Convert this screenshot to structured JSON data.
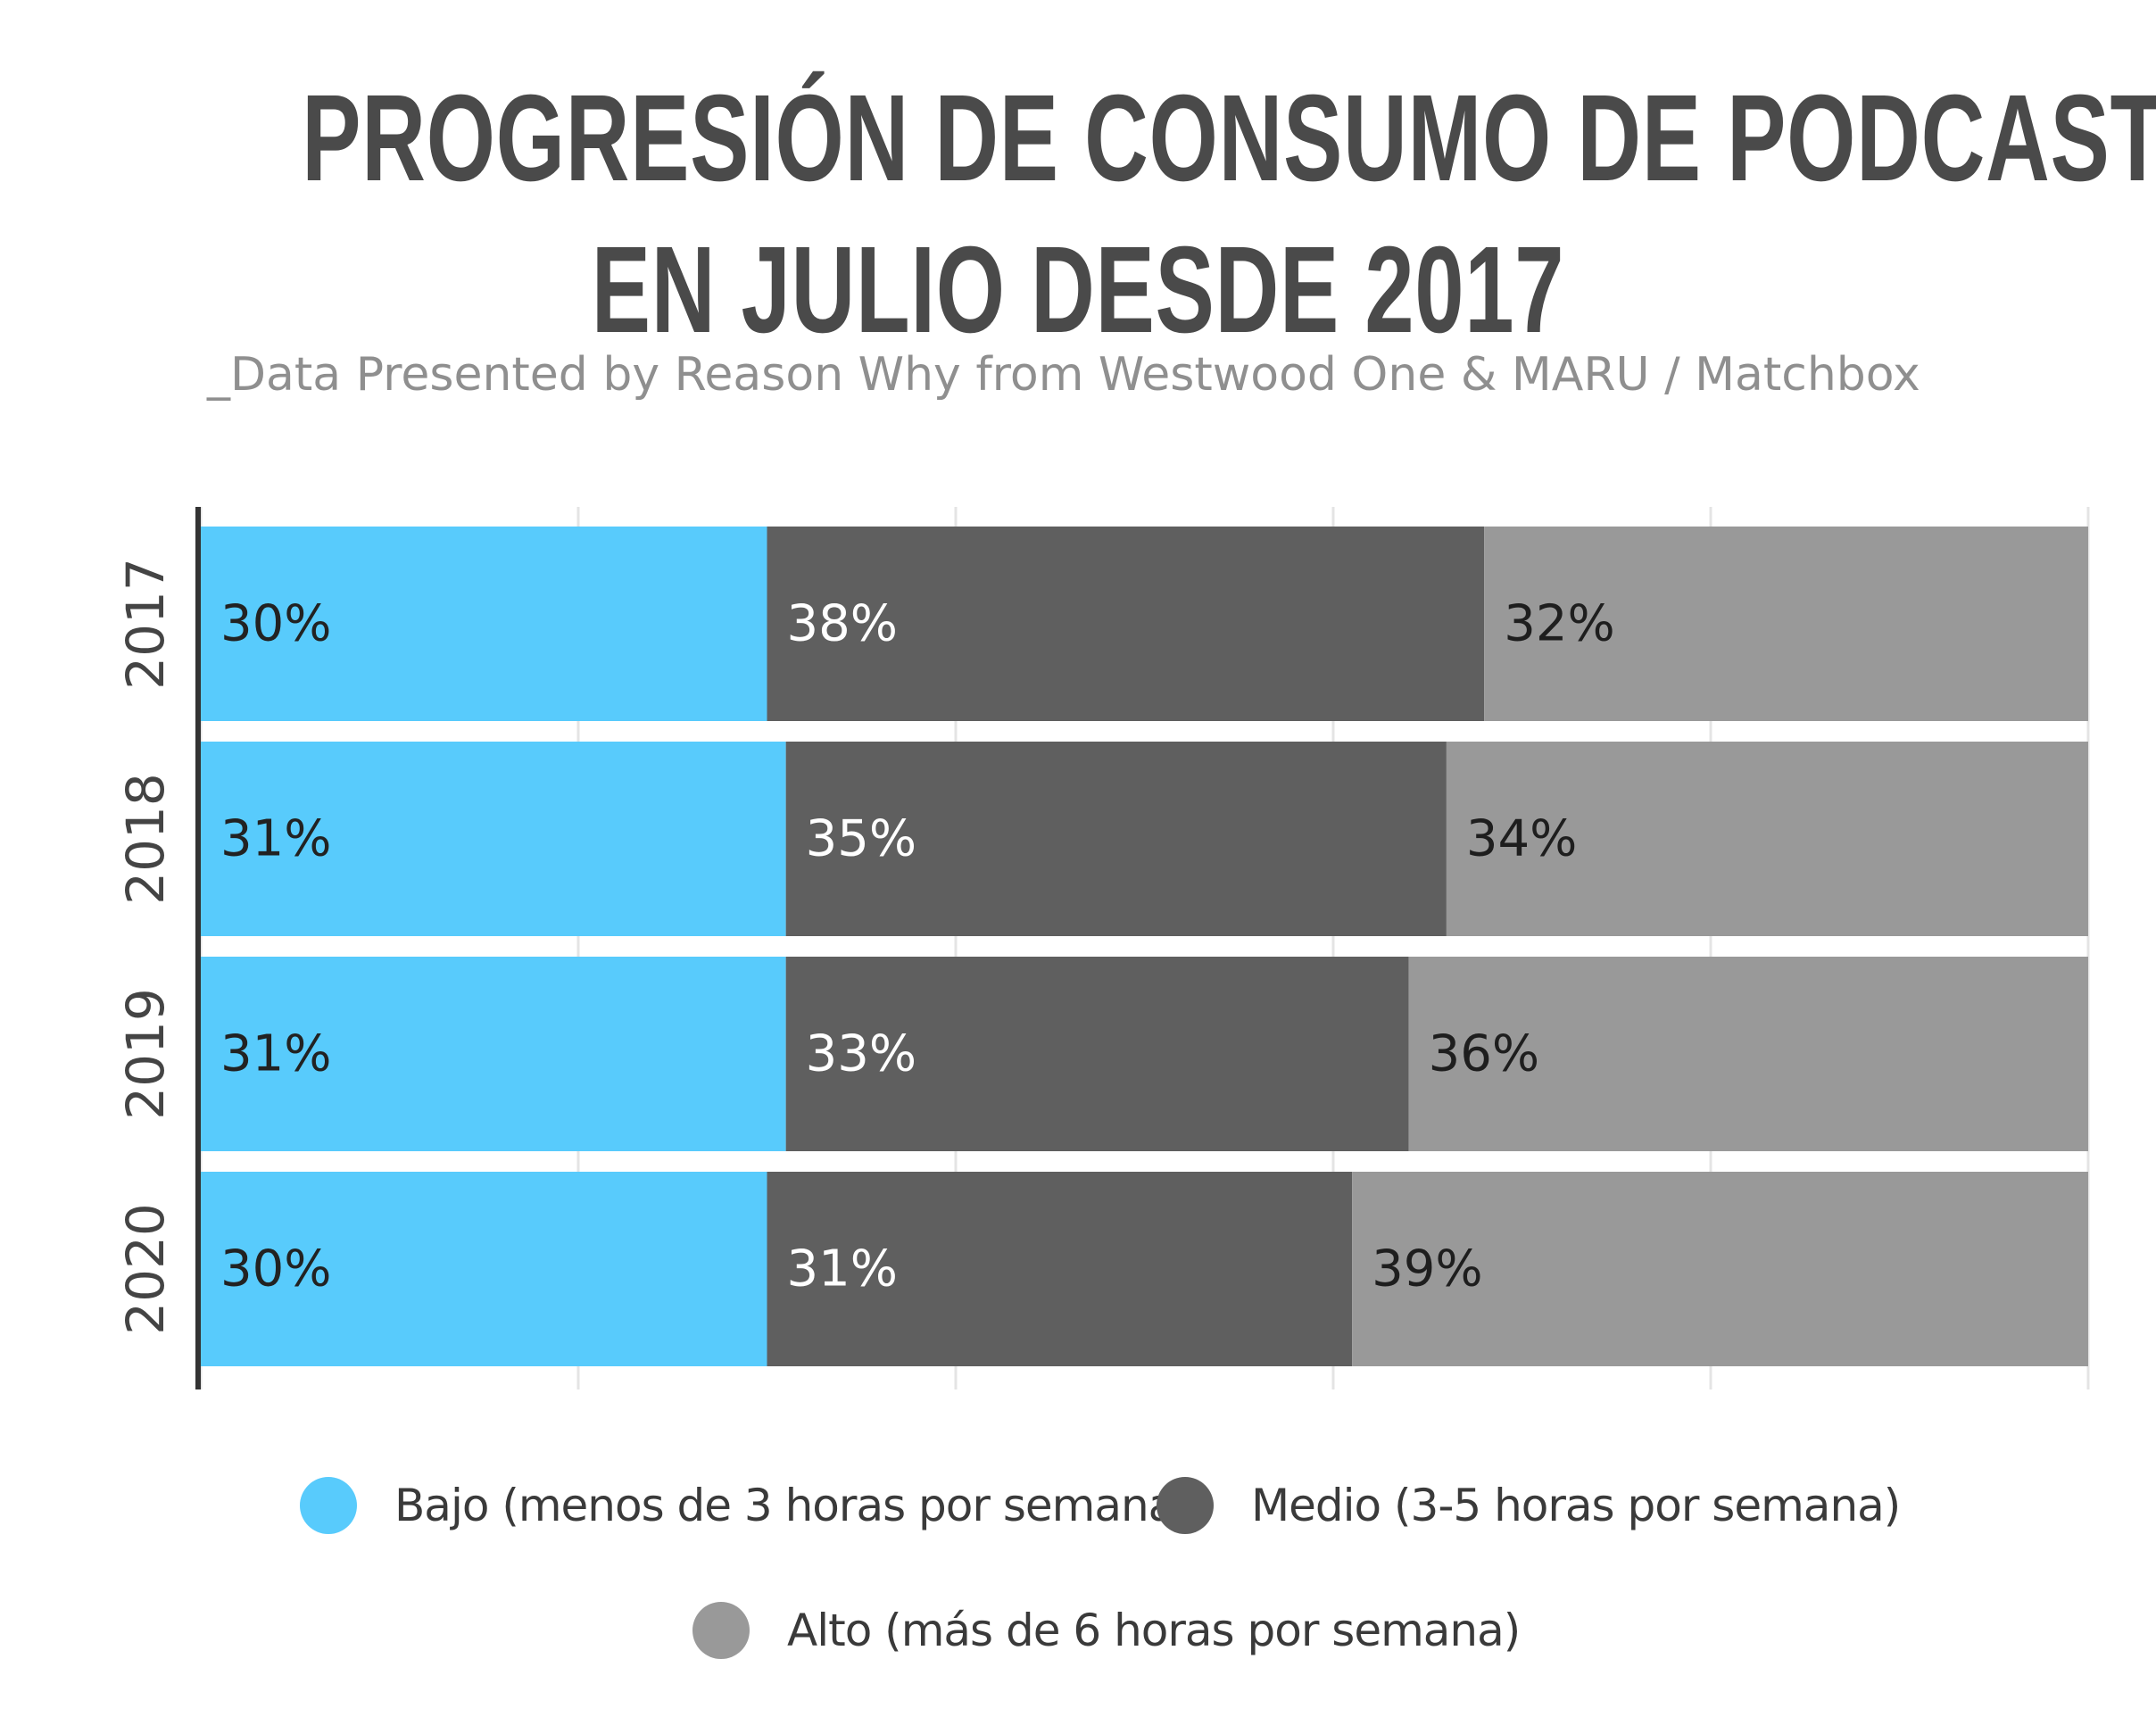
{
  "title": {
    "line1": "PROGRESIÓN DE CONSUMO DE PODCAST",
    "line2": "EN JULIO DESDE 2017"
  },
  "subtitle": "_Data Presented by Reason Why from Westwood One & MARU / Matchbox",
  "chart_data": {
    "type": "bar",
    "orientation": "horizontal",
    "stacked": true,
    "percent_stacked": true,
    "categories": [
      "2017",
      "2018",
      "2019",
      "2020"
    ],
    "series": [
      {
        "name": "Bajo (menos de 3 horas por semana)",
        "values": [
          30,
          31,
          31,
          30
        ],
        "labels": [
          "30%",
          "31%",
          "31%",
          "30%"
        ],
        "color": "#58cbfc",
        "label_color": "#222222"
      },
      {
        "name": "Medio (3-5 horas por semana)",
        "values": [
          38,
          35,
          33,
          31
        ],
        "labels": [
          "38%",
          "35%",
          "33%",
          "31%"
        ],
        "color": "#5f5f5f",
        "label_color": "#ffffff"
      },
      {
        "name": "Alto (más de 6 horas por semana)",
        "values": [
          32,
          34,
          36,
          39
        ],
        "labels": [
          "32%",
          "34%",
          "36%",
          "39%"
        ],
        "color": "#999999",
        "label_color": "#1e1e1e"
      }
    ],
    "xlim": [
      0,
      100
    ],
    "grid": true,
    "legend": "bottom"
  }
}
